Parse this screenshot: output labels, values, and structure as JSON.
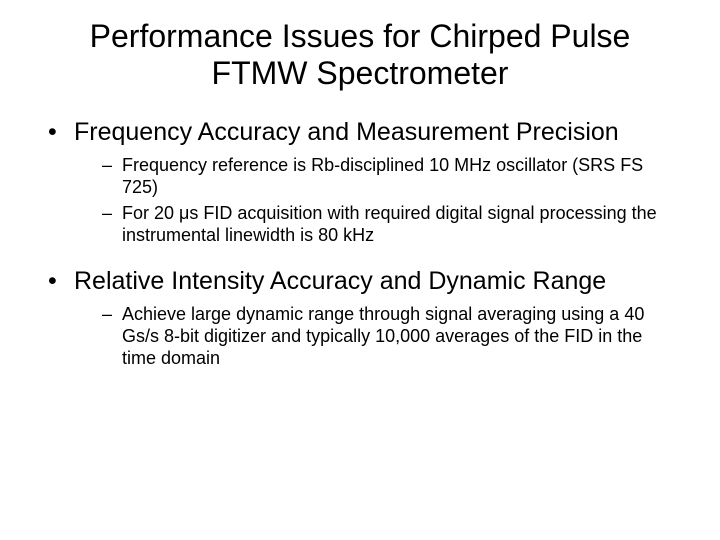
{
  "slide": {
    "title": "Performance Issues for Chirped Pulse FTMW Spectrometer",
    "bullets": [
      {
        "text": "Frequency Accuracy and Measurement Precision",
        "sub": [
          "Frequency reference is Rb-disciplined 10 MHz oscillator (SRS FS 725)",
          "For 20 μs FID acquisition with required digital signal processing the instrumental linewidth is 80 kHz"
        ]
      },
      {
        "text": "Relative Intensity Accuracy and Dynamic Range",
        "sub": [
          "Achieve large dynamic range through signal averaging using a 40 Gs/s 8-bit digitizer and typically 10,000 averages of the FID in the time domain"
        ]
      }
    ]
  },
  "style": {
    "background_color": "#ffffff",
    "text_color": "#000000",
    "font_family": "Arial",
    "title_fontsize": 32,
    "level1_fontsize": 25,
    "level2_fontsize": 18
  }
}
